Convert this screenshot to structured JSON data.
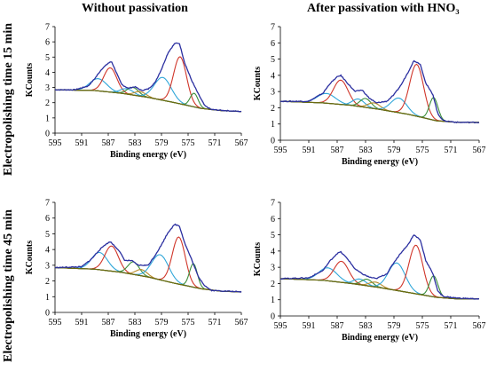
{
  "figure": {
    "column_titles": [
      "Without passivation",
      "After passivation with HNO₃"
    ],
    "row_labels": [
      "Electropolishing time 15 min",
      "Electropolishing time 45 min"
    ]
  },
  "chart_data": [
    {
      "type": "line",
      "row": 0,
      "col": 0,
      "xlabel": "Binding energy (eV)",
      "ylabel": "KCounts",
      "xlim": [
        595,
        567
      ],
      "ylim": [
        0,
        7
      ],
      "xticks": [
        595,
        591,
        587,
        583,
        579,
        575,
        571,
        567
      ],
      "yticks": [
        0,
        1,
        2,
        3,
        4,
        5,
        6,
        7
      ],
      "baseline": [
        [
          595,
          2.85
        ],
        [
          589,
          2.8
        ],
        [
          585,
          2.62
        ],
        [
          581,
          2.35
        ],
        [
          577,
          2.0
        ],
        [
          573,
          1.62
        ],
        [
          570,
          1.48
        ],
        [
          567,
          1.42
        ]
      ],
      "measured": [
        [
          595,
          2.85
        ],
        [
          592,
          2.85
        ],
        [
          590,
          3.1
        ],
        [
          589,
          3.6
        ],
        [
          588,
          4.2
        ],
        [
          587,
          4.6
        ],
        [
          586.5,
          4.7
        ],
        [
          586,
          4.2
        ],
        [
          585,
          3.2
        ],
        [
          584,
          2.95
        ],
        [
          583,
          3.05
        ],
        [
          582,
          2.8
        ],
        [
          581,
          2.9
        ],
        [
          580,
          3.3
        ],
        [
          579,
          4.2
        ],
        [
          578,
          5.3
        ],
        [
          577,
          5.9
        ],
        [
          576.3,
          5.9
        ],
        [
          575.5,
          4.6
        ],
        [
          574.5,
          3.5
        ],
        [
          573.5,
          2.6
        ],
        [
          572.5,
          1.8
        ],
        [
          571.5,
          1.55
        ],
        [
          570,
          1.5
        ],
        [
          567,
          1.42
        ]
      ],
      "components": [
        {
          "color": "#2fa6d9",
          "center": 588.5,
          "fwhm": 3.0,
          "height": 0.8
        },
        {
          "color": "#d0362a",
          "center": 586.7,
          "fwhm": 2.3,
          "height": 1.6
        },
        {
          "color": "#2fa6d9",
          "center": 584.2,
          "fwhm": 2.3,
          "height": 0.35
        },
        {
          "color": "#3c8f3c",
          "center": 583.3,
          "fwhm": 2.0,
          "height": 0.5
        },
        {
          "color": "#b88a2a",
          "center": 582.2,
          "fwhm": 2.0,
          "height": 0.3
        },
        {
          "color": "#2fa6d9",
          "center": 578.8,
          "fwhm": 3.0,
          "height": 1.5
        },
        {
          "color": "#d0362a",
          "center": 576.2,
          "fwhm": 2.3,
          "height": 3.1
        },
        {
          "color": "#3c8f3c",
          "center": 574.1,
          "fwhm": 1.4,
          "height": 0.9
        }
      ]
    },
    {
      "type": "line",
      "row": 0,
      "col": 1,
      "xlabel": "Binding energy (eV)",
      "ylabel": "KCounts",
      "xlim": [
        595,
        567
      ],
      "ylim": [
        0,
        7
      ],
      "xticks": [
        595,
        591,
        587,
        583,
        579,
        575,
        571,
        567
      ],
      "yticks": [
        0,
        1,
        2,
        3,
        4,
        5,
        6,
        7
      ],
      "baseline": [
        [
          595,
          2.4
        ],
        [
          589,
          2.3
        ],
        [
          585,
          2.15
        ],
        [
          581,
          1.9
        ],
        [
          577,
          1.6
        ],
        [
          573,
          1.2
        ],
        [
          570,
          1.1
        ],
        [
          567,
          1.1
        ]
      ],
      "measured": [
        [
          595,
          2.4
        ],
        [
          591,
          2.4
        ],
        [
          589,
          2.9
        ],
        [
          588,
          3.5
        ],
        [
          587,
          3.9
        ],
        [
          586.5,
          4.0
        ],
        [
          585.5,
          3.5
        ],
        [
          584.5,
          3.0
        ],
        [
          583.5,
          3.1
        ],
        [
          582.5,
          2.6
        ],
        [
          581.5,
          2.3
        ],
        [
          580,
          2.4
        ],
        [
          579,
          2.8
        ],
        [
          578,
          3.4
        ],
        [
          577,
          4.2
        ],
        [
          576.2,
          4.9
        ],
        [
          575.3,
          4.7
        ],
        [
          574.5,
          3.5
        ],
        [
          573.5,
          2.8
        ],
        [
          572.8,
          1.6
        ],
        [
          572,
          1.2
        ],
        [
          570,
          1.1
        ],
        [
          567,
          1.1
        ]
      ],
      "components": [
        {
          "color": "#2fa6d9",
          "center": 588.5,
          "fwhm": 3.0,
          "height": 0.6
        },
        {
          "color": "#d0362a",
          "center": 586.5,
          "fwhm": 2.4,
          "height": 1.5
        },
        {
          "color": "#2fa6d9",
          "center": 584.0,
          "fwhm": 2.0,
          "height": 0.45
        },
        {
          "color": "#3c8f3c",
          "center": 583.0,
          "fwhm": 1.8,
          "height": 0.55
        },
        {
          "color": "#b88a2a",
          "center": 581.8,
          "fwhm": 2.0,
          "height": 0.35
        },
        {
          "color": "#2fa6d9",
          "center": 578.3,
          "fwhm": 2.6,
          "height": 0.9
        },
        {
          "color": "#d0362a",
          "center": 575.8,
          "fwhm": 2.3,
          "height": 3.2
        },
        {
          "color": "#3c8f3c",
          "center": 573.4,
          "fwhm": 1.4,
          "height": 1.4
        }
      ]
    },
    {
      "type": "line",
      "row": 1,
      "col": 0,
      "xlabel": "Binding energy (eV)",
      "ylabel": "KCounts",
      "xlim": [
        595,
        567
      ],
      "ylim": [
        0,
        7
      ],
      "xticks": [
        595,
        591,
        587,
        583,
        579,
        575,
        571,
        567
      ],
      "yticks": [
        0,
        1,
        2,
        3,
        4,
        5,
        6,
        7
      ],
      "baseline": [
        [
          595,
          2.85
        ],
        [
          589,
          2.75
        ],
        [
          585,
          2.55
        ],
        [
          581,
          2.25
        ],
        [
          577,
          1.85
        ],
        [
          573,
          1.5
        ],
        [
          570,
          1.35
        ],
        [
          567,
          1.3
        ]
      ],
      "measured": [
        [
          595,
          2.85
        ],
        [
          591,
          2.9
        ],
        [
          589.5,
          3.4
        ],
        [
          588.5,
          3.9
        ],
        [
          587.5,
          4.3
        ],
        [
          586.7,
          4.5
        ],
        [
          585.5,
          4.0
        ],
        [
          584.5,
          3.3
        ],
        [
          583.5,
          3.3
        ],
        [
          582.5,
          3.0
        ],
        [
          581,
          3.0
        ],
        [
          580,
          3.6
        ],
        [
          579,
          4.3
        ],
        [
          578,
          5.1
        ],
        [
          577,
          5.6
        ],
        [
          576.3,
          5.5
        ],
        [
          575.5,
          4.4
        ],
        [
          574.5,
          3.4
        ],
        [
          573.5,
          2.3
        ],
        [
          572.5,
          1.7
        ],
        [
          571.5,
          1.4
        ],
        [
          569,
          1.35
        ],
        [
          567,
          1.3
        ]
      ],
      "components": [
        {
          "color": "#2fa6d9",
          "center": 588.3,
          "fwhm": 2.8,
          "height": 1.1
        },
        {
          "color": "#d0362a",
          "center": 586.5,
          "fwhm": 2.4,
          "height": 1.6
        },
        {
          "color": "#3c8f3c",
          "center": 583.2,
          "fwhm": 2.0,
          "height": 0.8
        },
        {
          "color": "#b88a2a",
          "center": 582.0,
          "fwhm": 2.0,
          "height": 0.4
        },
        {
          "color": "#2fa6d9",
          "center": 579.2,
          "fwhm": 3.0,
          "height": 1.6
        },
        {
          "color": "#d0362a",
          "center": 576.4,
          "fwhm": 2.3,
          "height": 3.0
        },
        {
          "color": "#3c8f3c",
          "center": 574.2,
          "fwhm": 1.4,
          "height": 1.5
        }
      ]
    },
    {
      "type": "line",
      "row": 1,
      "col": 1,
      "xlabel": "Binding energy (eV)",
      "ylabel": "KCounts",
      "xlim": [
        595,
        567
      ],
      "ylim": [
        0,
        7
      ],
      "xticks": [
        595,
        591,
        587,
        583,
        579,
        575,
        571,
        567
      ],
      "yticks": [
        0,
        1,
        2,
        3,
        4,
        5,
        6,
        7
      ],
      "baseline": [
        [
          595,
          2.3
        ],
        [
          589,
          2.2
        ],
        [
          585,
          2.0
        ],
        [
          581,
          1.75
        ],
        [
          577,
          1.45
        ],
        [
          573,
          1.15
        ],
        [
          570,
          1.05
        ],
        [
          567,
          1.05
        ]
      ],
      "measured": [
        [
          595,
          2.3
        ],
        [
          591,
          2.35
        ],
        [
          589,
          2.8
        ],
        [
          588,
          3.4
        ],
        [
          587,
          3.85
        ],
        [
          586.5,
          3.95
        ],
        [
          585.5,
          3.5
        ],
        [
          584.5,
          2.9
        ],
        [
          583.5,
          2.6
        ],
        [
          582.5,
          2.4
        ],
        [
          581.5,
          2.3
        ],
        [
          580,
          2.6
        ],
        [
          579,
          3.3
        ],
        [
          578,
          3.9
        ],
        [
          577,
          4.4
        ],
        [
          576.2,
          5.0
        ],
        [
          575.3,
          4.7
        ],
        [
          574.5,
          3.4
        ],
        [
          573.5,
          2.6
        ],
        [
          572.8,
          1.5
        ],
        [
          572,
          1.2
        ],
        [
          570,
          1.1
        ],
        [
          567,
          1.05
        ]
      ],
      "components": [
        {
          "color": "#2fa6d9",
          "center": 588.3,
          "fwhm": 3.0,
          "height": 0.8
        },
        {
          "color": "#d0362a",
          "center": 586.4,
          "fwhm": 2.4,
          "height": 1.3
        },
        {
          "color": "#2fa6d9",
          "center": 583.8,
          "fwhm": 2.0,
          "height": 0.35
        },
        {
          "color": "#3c8f3c",
          "center": 582.8,
          "fwhm": 1.8,
          "height": 0.4
        },
        {
          "color": "#b88a2a",
          "center": 581.6,
          "fwhm": 2.0,
          "height": 0.3
        },
        {
          "color": "#2fa6d9",
          "center": 578.6,
          "fwhm": 2.8,
          "height": 1.7
        },
        {
          "color": "#d0362a",
          "center": 575.9,
          "fwhm": 2.3,
          "height": 3.0
        },
        {
          "color": "#3c8f3c",
          "center": 573.4,
          "fwhm": 1.4,
          "height": 1.3
        }
      ]
    }
  ]
}
